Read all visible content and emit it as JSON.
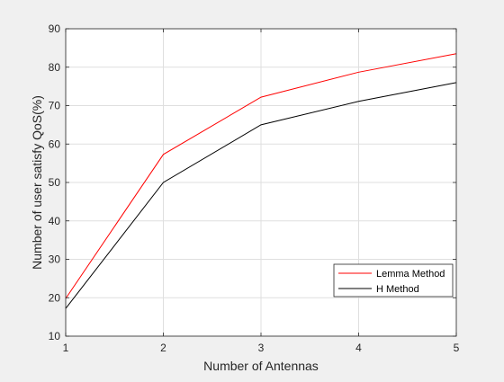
{
  "chart_data": {
    "type": "line",
    "title": "",
    "xlabel": "Number of Antennas",
    "ylabel": "Number of user satisfy QoS(%)",
    "x": [
      1,
      2,
      3,
      4,
      5
    ],
    "xlim": [
      1,
      5
    ],
    "ylim": [
      10,
      90
    ],
    "xticks": [
      1,
      2,
      3,
      4,
      5
    ],
    "yticks": [
      10,
      20,
      30,
      40,
      50,
      60,
      70,
      80,
      90
    ],
    "grid": true,
    "legend_position": "bottom-right",
    "series": [
      {
        "name": "Lemma Method",
        "color": "#ff0000",
        "values": [
          19.8,
          57.3,
          72.2,
          78.7,
          83.5
        ]
      },
      {
        "name": "H Method",
        "color": "#000000",
        "values": [
          17.2,
          50.0,
          65.0,
          71.1,
          76.0
        ]
      }
    ]
  }
}
